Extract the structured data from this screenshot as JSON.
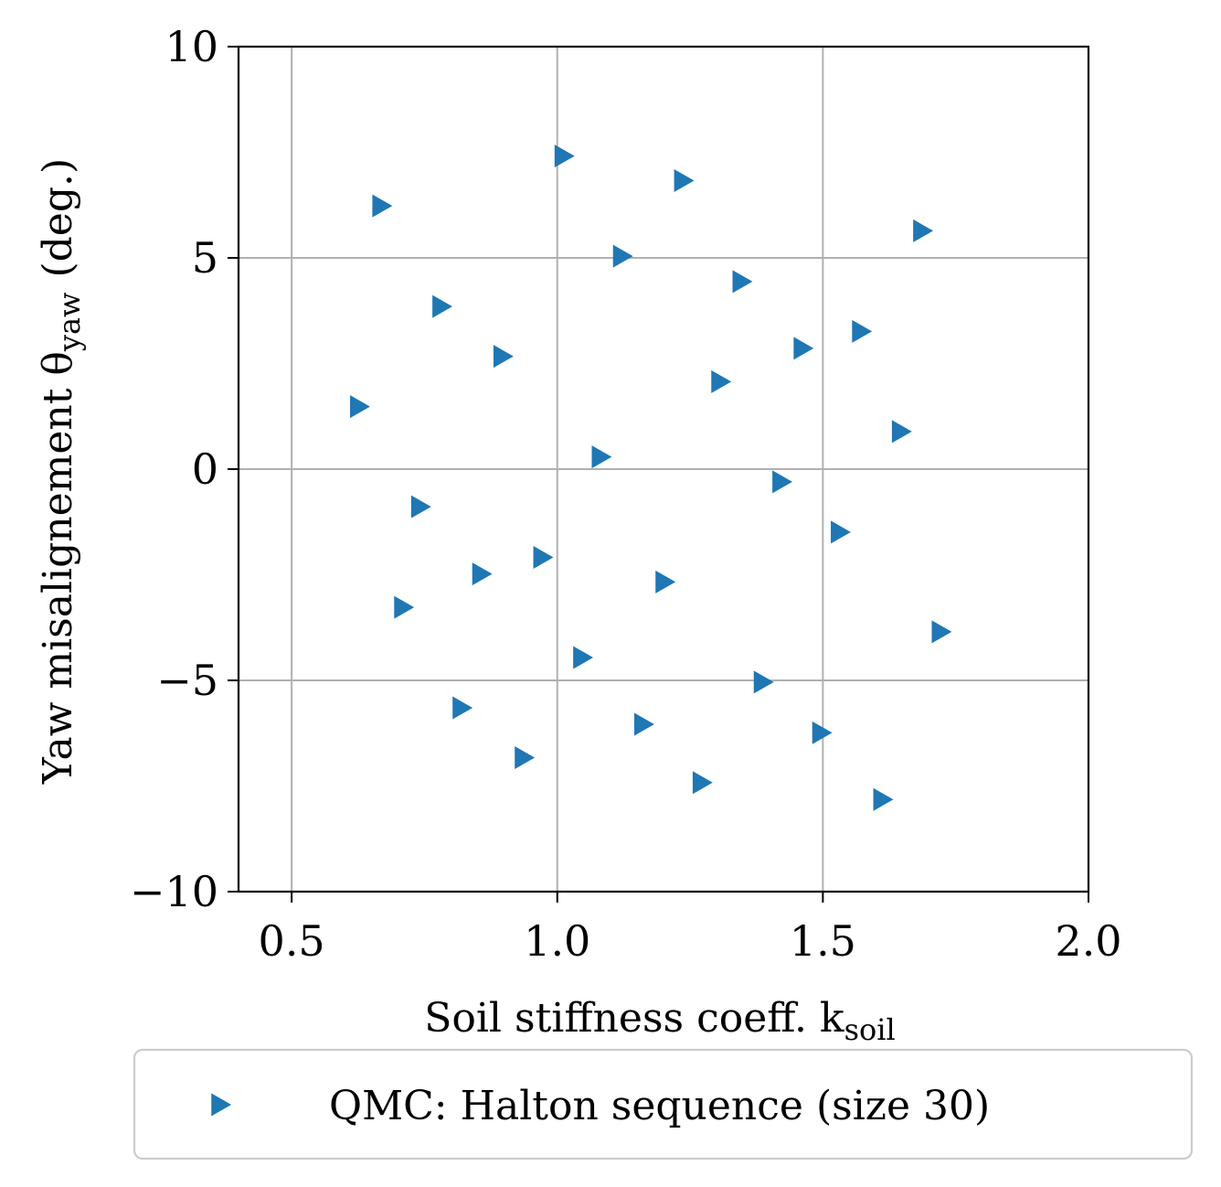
{
  "chart_data": {
    "type": "scatter",
    "xlabel": "Soil stiffness coeff. k",
    "xlabel_sub": "soil",
    "ylabel": "Yaw misalignement θ",
    "ylabel_sub": "yaw",
    "ylabel_unit": "(deg.)",
    "xlim": [
      0.4,
      2.0
    ],
    "ylim": [
      -10,
      10
    ],
    "xticks": [
      0.5,
      1.0,
      1.5,
      2.0
    ],
    "xtick_labels": [
      "0.5",
      "1.0",
      "1.5",
      "2.0"
    ],
    "yticks": [
      10,
      5,
      0,
      -5,
      -10
    ],
    "ytick_labels": [
      "10",
      "5",
      "0",
      "−5",
      "−10"
    ],
    "grid": true,
    "legend_position": "below",
    "series": [
      {
        "name": "QMC: Halton sequence (size 30)",
        "color": "#1f77b4",
        "marker": "triangle-right",
        "points": [
          [
            0.625,
            1.48
          ],
          [
            0.667,
            6.23
          ],
          [
            0.708,
            -3.27
          ],
          [
            0.74,
            -0.89
          ],
          [
            0.78,
            3.85
          ],
          [
            0.818,
            -5.65
          ],
          [
            0.855,
            -2.48
          ],
          [
            0.895,
            2.67
          ],
          [
            0.935,
            -6.83
          ],
          [
            0.97,
            -2.09
          ],
          [
            1.01,
            7.41
          ],
          [
            1.045,
            -4.46
          ],
          [
            1.08,
            0.29
          ],
          [
            1.12,
            5.04
          ],
          [
            1.16,
            -6.04
          ],
          [
            1.2,
            -2.67
          ],
          [
            1.235,
            6.83
          ],
          [
            1.27,
            -7.42
          ],
          [
            1.305,
            2.07
          ],
          [
            1.345,
            4.44
          ],
          [
            1.385,
            -5.04
          ],
          [
            1.42,
            -0.3
          ],
          [
            1.46,
            2.86
          ],
          [
            1.495,
            -6.24
          ],
          [
            1.53,
            -1.49
          ],
          [
            1.57,
            3.26
          ],
          [
            1.61,
            -7.82
          ],
          [
            1.645,
            0.89
          ],
          [
            1.685,
            5.64
          ],
          [
            1.72,
            -3.85
          ]
        ]
      }
    ]
  }
}
